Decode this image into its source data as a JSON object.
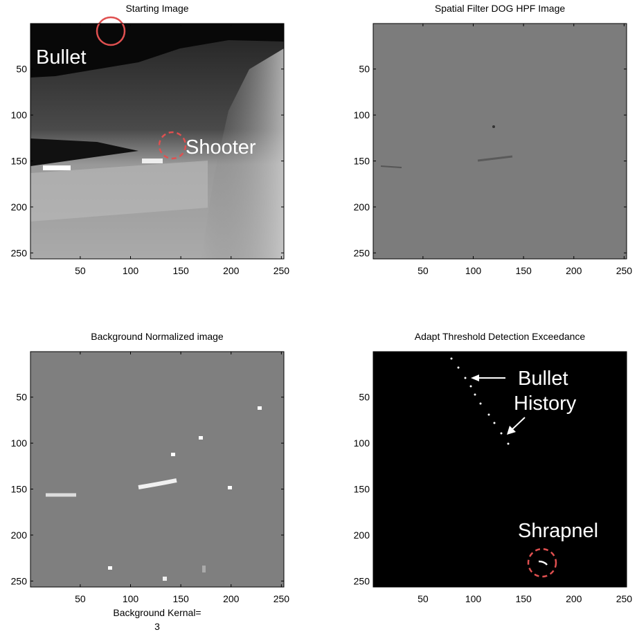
{
  "chart_data": [
    {
      "type": "image",
      "title": "Starting Image",
      "xlim": [
        0.5,
        252.5
      ],
      "ylim": [
        0.5,
        256.5
      ],
      "xticks": [
        50,
        100,
        150,
        200,
        250
      ],
      "yticks": [
        50,
        100,
        150,
        200,
        250
      ],
      "annotations": [
        "Bullet",
        "Shooter"
      ]
    },
    {
      "type": "image",
      "title": "Spatial Filter DOG HPF Image",
      "xlim": [
        0.5,
        252.5
      ],
      "ylim": [
        0.5,
        256.5
      ],
      "xticks": [
        50,
        100,
        150,
        200,
        250
      ],
      "yticks": [
        50,
        100,
        150,
        200,
        250
      ]
    },
    {
      "type": "image",
      "title": "Background Normalized image",
      "xlabel": [
        "Background Kernal=",
        "3"
      ],
      "xlim": [
        0.5,
        252.5
      ],
      "ylim": [
        0.5,
        256.5
      ],
      "xticks": [
        50,
        100,
        150,
        200,
        250
      ],
      "yticks": [
        50,
        100,
        150,
        200,
        250
      ]
    },
    {
      "type": "image",
      "title": "Adapt Threshold Detection Exceedance",
      "xlim": [
        0.5,
        252.5
      ],
      "ylim": [
        0.5,
        256.5
      ],
      "xticks": [
        50,
        100,
        150,
        200,
        250
      ],
      "yticks": [
        50,
        100,
        150,
        200,
        250
      ],
      "annotations": [
        "Bullet",
        "History",
        "Shrapnel"
      ]
    }
  ]
}
